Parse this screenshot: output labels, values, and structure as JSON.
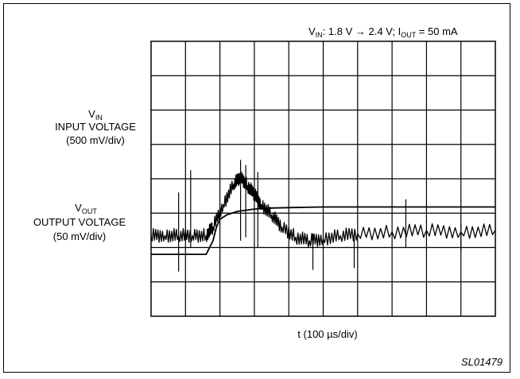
{
  "chart_data": {
    "type": "line",
    "condition": {
      "vin_symbol": "V",
      "vin_sub": "IN",
      "vin_range": ": 1.8 V → 2.4 V; I",
      "iout_sub": "OUT",
      "iout_value": " = 50 mA"
    },
    "xlabel": "t (100 µs/div)",
    "grid": {
      "divisions_x": 10,
      "divisions_y": 8
    },
    "figure_id": "SL01479",
    "series": [
      {
        "name_symbol": "V",
        "name_sub": "IN",
        "name_line2": "INPUT VOLTAGE",
        "scale": "(500 mV/div)",
        "x_div": [
          0,
          1.6,
          1.8,
          1.9,
          2.0,
          2.2,
          2.5,
          3.0,
          3.5,
          4.0,
          4.5,
          5.0,
          6.0,
          7.0,
          8.0,
          9.0,
          10.0
        ],
        "y_div": [
          1.8,
          1.8,
          2.2,
          2.6,
          2.82,
          2.95,
          3.05,
          3.12,
          3.15,
          3.16,
          3.17,
          3.18,
          3.18,
          3.18,
          3.18,
          3.18,
          3.18
        ]
      },
      {
        "name_symbol": "V",
        "name_sub": "OUT",
        "name_line2": "OUTPUT VOLTAGE",
        "scale": "(50 mV/div)",
        "x_div": [
          0,
          0.4,
          0.8,
          1.2,
          1.6,
          1.8,
          2.1,
          2.4,
          2.6,
          2.8,
          3.0,
          3.2,
          3.5,
          3.8,
          4.2,
          4.6,
          5.0,
          5.5,
          6.0,
          7.0,
          8.0,
          9.0,
          10.0
        ],
        "y_div": [
          2.35,
          2.35,
          2.35,
          2.35,
          2.35,
          2.6,
          3.25,
          3.85,
          4.05,
          3.8,
          3.55,
          3.25,
          2.95,
          2.6,
          2.3,
          2.2,
          2.25,
          2.35,
          2.4,
          2.45,
          2.5,
          2.45,
          2.5
        ]
      }
    ],
    "spikes": [
      {
        "x_div": 0.8,
        "y_top": 3.6,
        "y_bot": 1.3
      },
      {
        "x_div": 1.15,
        "y_top": 4.25,
        "y_bot": 2.0
      },
      {
        "x_div": 2.6,
        "y_top": 4.55,
        "y_bot": 2.2
      },
      {
        "x_div": 2.75,
        "y_top": 4.4,
        "y_bot": 2.3
      },
      {
        "x_div": 3.1,
        "y_top": 4.2,
        "y_bot": 2.0
      },
      {
        "x_div": 4.7,
        "y_top": 2.4,
        "y_bot": 1.35
      },
      {
        "x_div": 5.9,
        "y_top": 2.4,
        "y_bot": 1.4
      },
      {
        "x_div": 7.4,
        "y_top": 3.4,
        "y_bot": 2.0
      },
      {
        "x_div": 9.0,
        "y_top": 2.7,
        "y_bot": 1.9
      }
    ]
  }
}
